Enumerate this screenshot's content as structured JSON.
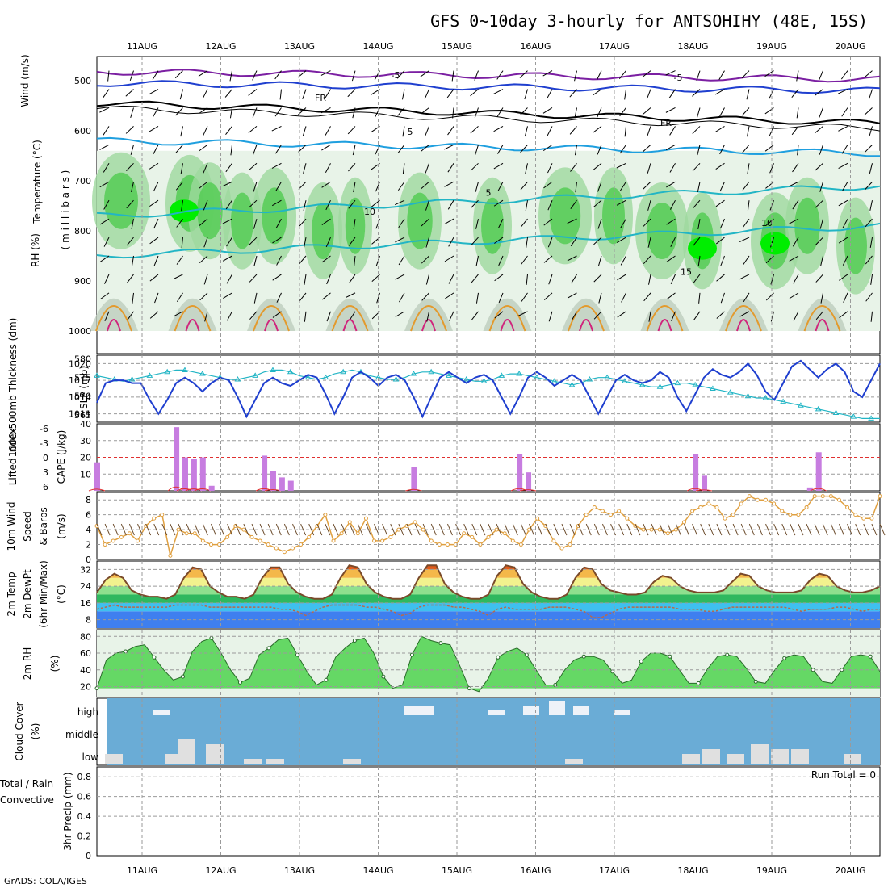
{
  "title": "GFS 0~10day 3-hourly for ANTSOHIHY (48E, 15S)",
  "footer": "GrADS: COLA/IGES",
  "dates": [
    "11AUG",
    "12AUG",
    "13AUG",
    "14AUG",
    "15AUG",
    "16AUG",
    "17AUG",
    "18AUG",
    "19AUG",
    "20AUG"
  ],
  "colors": {
    "grid": "#9a9a9a",
    "rh_green": "#55cc55",
    "bright_green": "#00ee00",
    "cloud_blue": "#6aacd6",
    "slp": "#1f3fcf",
    "thick": "#22b5c5",
    "cape": "#c77de0",
    "li": "#e03030",
    "wind": "#e0a040",
    "temp": "#7a4a2a"
  },
  "panels": {
    "upper": {
      "ylabel_wind": "Wind (m/s)",
      "ylabel_temp": "Temperature (°C)",
      "ylabel_rh": "RH (%)",
      "ylabel_mb": "( m i l l i b a r s )",
      "yticks": [
        "500",
        "600",
        "700",
        "800",
        "900",
        "1000"
      ],
      "contour_labels": [
        {
          "text": "-5",
          "color": "#1f3fcf"
        },
        {
          "text": "-5",
          "color": "#1f3fcf"
        },
        {
          "text": "5",
          "color": "#1f9fdf"
        },
        {
          "text": "5",
          "color": "#1f9fdf"
        },
        {
          "text": "10",
          "color": "#1fb5c5"
        },
        {
          "text": "10",
          "color": "#1fb5c5"
        },
        {
          "text": "15",
          "color": "#1fb5c5"
        },
        {
          "text": "FR",
          "color": "#000"
        },
        {
          "text": "FR",
          "color": "#000"
        }
      ]
    },
    "slp": {
      "ylabel_left": "1000-500mb Thickness (dm)",
      "ylabel_right": "SLP (mb)",
      "left_ticks": [
        "580",
        "575",
        "570",
        "565"
      ],
      "right_ticks": [
        "1020",
        "1017",
        "1014",
        "1011"
      ]
    },
    "cape": {
      "ylabel_left": "Lifted Index",
      "ylabel_right": "CAPE (J/kg)",
      "left_ticks": [
        "-6",
        "-3",
        "0",
        "3",
        "6"
      ],
      "right_ticks": [
        "40",
        "30",
        "20",
        "10"
      ]
    },
    "wind": {
      "ylabel1": "10m Wind",
      "ylabel2": "Speed",
      "ylabel3": "& Barbs",
      "ylabel4": "(m/s)",
      "ticks": [
        "8",
        "6",
        "4",
        "2",
        "0"
      ]
    },
    "temp": {
      "ylabel1": "2m Temp",
      "ylabel2": "2m DewPt",
      "ylabel3": "(6hr Min/Max)",
      "ylabel4": "(°C)",
      "ticks": [
        "32",
        "24",
        "16",
        "8"
      ]
    },
    "rh": {
      "ylabel1": "2m RH",
      "ylabel2": "(%)",
      "ticks": [
        "80",
        "60",
        "40",
        "20"
      ]
    },
    "cloud": {
      "ylabel1": "Cloud Cover",
      "ylabel2": "(%)",
      "levels": [
        "high",
        "middle",
        "low"
      ]
    },
    "precip": {
      "ylabel1": "Total / Rain",
      "ylabel2": "Convective",
      "ylabel3": "3hr Precip (mm)",
      "ticks": [
        "0.8",
        "0.6",
        "0.4",
        "0.2",
        "0"
      ],
      "run_total": "Run Total = 0"
    }
  },
  "chart_data": {
    "type": "line",
    "title": "GFS 0~10day 3-hourly for ANTSOHIHY (48E, 15S)",
    "x_start": "10AUG 15Z",
    "x_step_hours": 3,
    "slp_mb": [
      1013.0,
      1016.5,
      1017.0,
      1017.0,
      1016.5,
      1016.5,
      1013.5,
      1011.0,
      1013.5,
      1016.5,
      1017.5,
      1016.5,
      1015.0,
      1016.5,
      1017.5,
      1017.0,
      1014.0,
      1010.5,
      1013.5,
      1016.5,
      1017.5,
      1016.5,
      1016.0,
      1017.0,
      1018.0,
      1017.5,
      1014.5,
      1011.0,
      1014.0,
      1017.5,
      1018.5,
      1017.5,
      1016.0,
      1017.5,
      1018.0,
      1017.0,
      1014.0,
      1010.5,
      1014.0,
      1017.5,
      1018.5,
      1017.5,
      1016.5,
      1017.5,
      1018.0,
      1017.0,
      1014.0,
      1011.0,
      1014.0,
      1017.5,
      1018.5,
      1017.5,
      1016.0,
      1017.0,
      1018.0,
      1017.0,
      1014.0,
      1011.0,
      1014.0,
      1017.0,
      1018.0,
      1017.0,
      1016.5,
      1017.0,
      1018.5,
      1017.5,
      1014.0,
      1011.5,
      1014.5,
      1017.5,
      1019.0,
      1018.0,
      1017.5,
      1018.5,
      1020.0,
      1018.0,
      1015.0,
      1013.5,
      1016.5,
      1019.5,
      1020.5,
      1019.0,
      1017.5,
      1019.0,
      1020.0,
      1018.5,
      1015.0,
      1014.0,
      1017.0,
      1020.0
    ],
    "thickness_dm": [
      575.5,
      575.0,
      574.5,
      574.0,
      574.5,
      575.0,
      575.5,
      576.0,
      576.5,
      577.0,
      577.0,
      576.5,
      576.0,
      575.5,
      575.0,
      574.5,
      574.5,
      575.0,
      575.5,
      576.5,
      577.0,
      577.0,
      576.5,
      575.5,
      575.0,
      574.5,
      575.0,
      576.0,
      576.5,
      577.0,
      576.5,
      575.5,
      575.0,
      574.5,
      574.5,
      575.0,
      576.0,
      576.5,
      576.5,
      576.0,
      575.5,
      575.0,
      574.5,
      574.0,
      574.0,
      574.5,
      575.5,
      576.0,
      576.0,
      575.5,
      575.0,
      574.5,
      574.0,
      573.5,
      573.0,
      573.5,
      574.5,
      575.0,
      575.0,
      574.5,
      574.0,
      573.5,
      573.0,
      572.5,
      572.5,
      573.0,
      573.5,
      573.5,
      573.0,
      572.5,
      572.0,
      571.5,
      571.0,
      570.5,
      570.0,
      569.5,
      569.5,
      569.0,
      568.5,
      568.0,
      567.5,
      567.0,
      566.5,
      566.0,
      565.5,
      565.0,
      564.5,
      564.0,
      564.0,
      564.0
    ],
    "cape_jkg": [
      17,
      0,
      0,
      0,
      0,
      0,
      0,
      0,
      0,
      38,
      20,
      19,
      20,
      3,
      0,
      0,
      0,
      0,
      0,
      21,
      12,
      8,
      6,
      0,
      0,
      0,
      0,
      0,
      0,
      0,
      0,
      0,
      0,
      0,
      0,
      0,
      14,
      0,
      0,
      0,
      0,
      0,
      0,
      0,
      0,
      0,
      0,
      0,
      22,
      11,
      0,
      0,
      0,
      0,
      0,
      0,
      0,
      0,
      0,
      0,
      0,
      0,
      0,
      0,
      0,
      0,
      0,
      0,
      22,
      9,
      0,
      0,
      0,
      0,
      0,
      0,
      0,
      0,
      0,
      0,
      0,
      2,
      23,
      0,
      0,
      0,
      0,
      0,
      0,
      0
    ],
    "wind_speed_ms": [
      4.5,
      2,
      2.5,
      3,
      3.5,
      2.5,
      4.5,
      5.5,
      6,
      0.5,
      4,
      3.5,
      3.5,
      2.5,
      2,
      2,
      3,
      4.5,
      4,
      3,
      2.5,
      2,
      1.5,
      1,
      1.5,
      2,
      3,
      4.5,
      6,
      2.5,
      3.5,
      5,
      3.5,
      5.5,
      2.5,
      2.5,
      3,
      4,
      4.5,
      5,
      4,
      2.5,
      2,
      2,
      2,
      3.5,
      3,
      2,
      3,
      4,
      3.5,
      2.5,
      2,
      4,
      5.5,
      4.5,
      2.5,
      1.5,
      2,
      4.5,
      6,
      7,
      6.5,
      6,
      6.5,
      5.5,
      4.5,
      4,
      4,
      4,
      3.5,
      4,
      5,
      6.5,
      7,
      7.5,
      7,
      5.5,
      6,
      7.5,
      8.5,
      8,
      8,
      7.5,
      6.5,
      6,
      6,
      7,
      8.5,
      8.5,
      8.5,
      8,
      7,
      6,
      5.5,
      5.5,
      8.5
    ],
    "temp_c": [
      21,
      27,
      30,
      28,
      22,
      20,
      19,
      19,
      18,
      20,
      28,
      33,
      32,
      24,
      21,
      19,
      19,
      18,
      20,
      28,
      33,
      33,
      25,
      21,
      19,
      18,
      18,
      20,
      28,
      34,
      33,
      25,
      21,
      19,
      18,
      18,
      20,
      28,
      34,
      34,
      25,
      21,
      19,
      18,
      18,
      20,
      29,
      34,
      33,
      25,
      21,
      19,
      18,
      18,
      20,
      28,
      33,
      32,
      25,
      22,
      21,
      20,
      20,
      21,
      26,
      29,
      28,
      24,
      22,
      21,
      21,
      21,
      22,
      26,
      30,
      29,
      24,
      22,
      21,
      21,
      21,
      22,
      27,
      30,
      29,
      24,
      22,
      21,
      21,
      22,
      24
    ],
    "dewpt_c": [
      13,
      14,
      15,
      14,
      14,
      14,
      14,
      14,
      14,
      15,
      15,
      15,
      15,
      14,
      14,
      14,
      14,
      14,
      14,
      14,
      14,
      13,
      13,
      12,
      10,
      12,
      14,
      15,
      15,
      15,
      15,
      14,
      14,
      13,
      12,
      10,
      11,
      14,
      15,
      15,
      15,
      14,
      14,
      13,
      12,
      10,
      13,
      14,
      13,
      13,
      13,
      13,
      14,
      14,
      14,
      13,
      12,
      9,
      9,
      11,
      13,
      14,
      14,
      14,
      14,
      14,
      14,
      13,
      13,
      13,
      12,
      12,
      13,
      14,
      14,
      14,
      14,
      14,
      14,
      14,
      13,
      12,
      13,
      13,
      13,
      14,
      14,
      13,
      12,
      13,
      13
    ],
    "rh_pct": [
      18,
      52,
      60,
      62,
      68,
      70,
      55,
      40,
      28,
      32,
      62,
      74,
      78,
      60,
      40,
      25,
      30,
      58,
      66,
      76,
      78,
      58,
      38,
      22,
      28,
      55,
      66,
      75,
      78,
      60,
      32,
      18,
      22,
      58,
      80,
      75,
      72,
      70,
      45,
      18,
      14,
      30,
      55,
      62,
      66,
      58,
      40,
      22,
      22,
      40,
      52,
      56,
      56,
      52,
      38,
      24,
      28,
      50,
      60,
      60,
      56,
      40,
      24,
      24,
      42,
      56,
      58,
      56,
      42,
      26,
      24,
      40,
      54,
      58,
      56,
      40,
      26,
      24,
      40,
      56,
      58,
      56,
      38
    ],
    "precip_mm": [
      0,
      0,
      0,
      0,
      0,
      0,
      0,
      0,
      0,
      0
    ]
  }
}
